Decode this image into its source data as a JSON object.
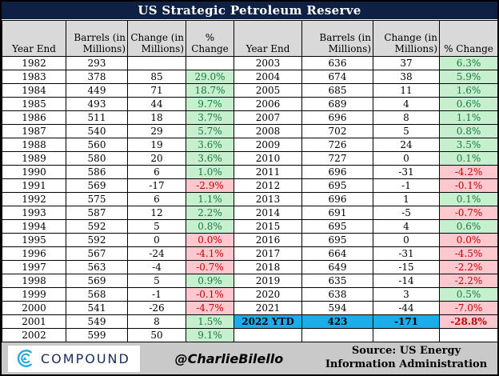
{
  "chart_data": {
    "type": "table",
    "title": "US Strategic Petroleum Reserve",
    "columns": [
      "Year End",
      "Barrels (in Millions)",
      "Change (in Millions)",
      "% Change"
    ],
    "left_rows": [
      {
        "year": "1982",
        "barrels": "293",
        "change": "",
        "pct": ""
      },
      {
        "year": "1983",
        "barrels": "378",
        "change": "85",
        "pct": "29.0%"
      },
      {
        "year": "1984",
        "barrels": "449",
        "change": "71",
        "pct": "18.7%"
      },
      {
        "year": "1985",
        "barrels": "493",
        "change": "44",
        "pct": "9.7%"
      },
      {
        "year": "1986",
        "barrels": "511",
        "change": "18",
        "pct": "3.7%"
      },
      {
        "year": "1987",
        "barrels": "540",
        "change": "29",
        "pct": "5.7%"
      },
      {
        "year": "1988",
        "barrels": "560",
        "change": "19",
        "pct": "3.6%"
      },
      {
        "year": "1989",
        "barrels": "580",
        "change": "20",
        "pct": "3.6%"
      },
      {
        "year": "1990",
        "barrels": "586",
        "change": "6",
        "pct": "1.0%"
      },
      {
        "year": "1991",
        "barrels": "569",
        "change": "-17",
        "pct": "-2.9%"
      },
      {
        "year": "1992",
        "barrels": "575",
        "change": "6",
        "pct": "1.1%"
      },
      {
        "year": "1993",
        "barrels": "587",
        "change": "12",
        "pct": "2.2%"
      },
      {
        "year": "1994",
        "barrels": "592",
        "change": "5",
        "pct": "0.8%"
      },
      {
        "year": "1995",
        "barrels": "592",
        "change": "0",
        "pct": "0.0%"
      },
      {
        "year": "1996",
        "barrels": "567",
        "change": "-24",
        "pct": "-4.1%"
      },
      {
        "year": "1997",
        "barrels": "563",
        "change": "-4",
        "pct": "-0.7%"
      },
      {
        "year": "1998",
        "barrels": "569",
        "change": "5",
        "pct": "0.9%"
      },
      {
        "year": "1999",
        "barrels": "568",
        "change": "-1",
        "pct": "-0.1%"
      },
      {
        "year": "2000",
        "barrels": "541",
        "change": "-26",
        "pct": "-4.7%"
      },
      {
        "year": "2001",
        "barrels": "549",
        "change": "8",
        "pct": "1.5%"
      },
      {
        "year": "2002",
        "barrels": "599",
        "change": "50",
        "pct": "9.1%"
      }
    ],
    "right_rows": [
      {
        "year": "2003",
        "barrels": "636",
        "change": "37",
        "pct": "6.3%"
      },
      {
        "year": "2004",
        "barrels": "674",
        "change": "38",
        "pct": "5.9%"
      },
      {
        "year": "2005",
        "barrels": "685",
        "change": "11",
        "pct": "1.6%"
      },
      {
        "year": "2006",
        "barrels": "689",
        "change": "4",
        "pct": "0.6%"
      },
      {
        "year": "2007",
        "barrels": "696",
        "change": "8",
        "pct": "1.1%"
      },
      {
        "year": "2008",
        "barrels": "702",
        "change": "5",
        "pct": "0.8%"
      },
      {
        "year": "2009",
        "barrels": "726",
        "change": "24",
        "pct": "3.5%"
      },
      {
        "year": "2010",
        "barrels": "727",
        "change": "0",
        "pct": "0.1%"
      },
      {
        "year": "2011",
        "barrels": "696",
        "change": "-31",
        "pct": "-4.2%"
      },
      {
        "year": "2012",
        "barrels": "695",
        "change": "-1",
        "pct": "-0.1%"
      },
      {
        "year": "2013",
        "barrels": "696",
        "change": "1",
        "pct": "0.1%"
      },
      {
        "year": "2014",
        "barrels": "691",
        "change": "-5",
        "pct": "-0.7%"
      },
      {
        "year": "2015",
        "barrels": "695",
        "change": "4",
        "pct": "0.6%"
      },
      {
        "year": "2016",
        "barrels": "695",
        "change": "0",
        "pct": "0.0%"
      },
      {
        "year": "2017",
        "barrels": "664",
        "change": "-31",
        "pct": "-4.5%"
      },
      {
        "year": "2018",
        "barrels": "649",
        "change": "-15",
        "pct": "-2.2%"
      },
      {
        "year": "2019",
        "barrels": "635",
        "change": "-14",
        "pct": "-2.2%"
      },
      {
        "year": "2020",
        "barrels": "638",
        "change": "3",
        "pct": "0.5%"
      },
      {
        "year": "2021",
        "barrels": "594",
        "change": "-44",
        "pct": "-7.0%"
      },
      {
        "year": "2022 YTD",
        "barrels": "423",
        "change": "-171",
        "pct": "-28.8%",
        "highlight": true
      },
      {
        "year": "",
        "barrels": "",
        "change": "",
        "pct": ""
      }
    ]
  },
  "footer": {
    "brand": "COMPOUND",
    "handle": "@CharlieBilello",
    "source": "Source: US Energy Information Administration"
  },
  "colors": {
    "title_bg": "#0e2145",
    "header_bg": "#d9d9d9",
    "positive_bg": "#c6efce",
    "positive_text": "#1a7a3c",
    "negative_bg": "#ffc7ce",
    "negative_text": "#c00000",
    "highlight_bg": "#1badea",
    "footer_bg": "#c9c9c9",
    "brand_blue": "#29abe2",
    "brand_navy": "#1b2a5e"
  }
}
